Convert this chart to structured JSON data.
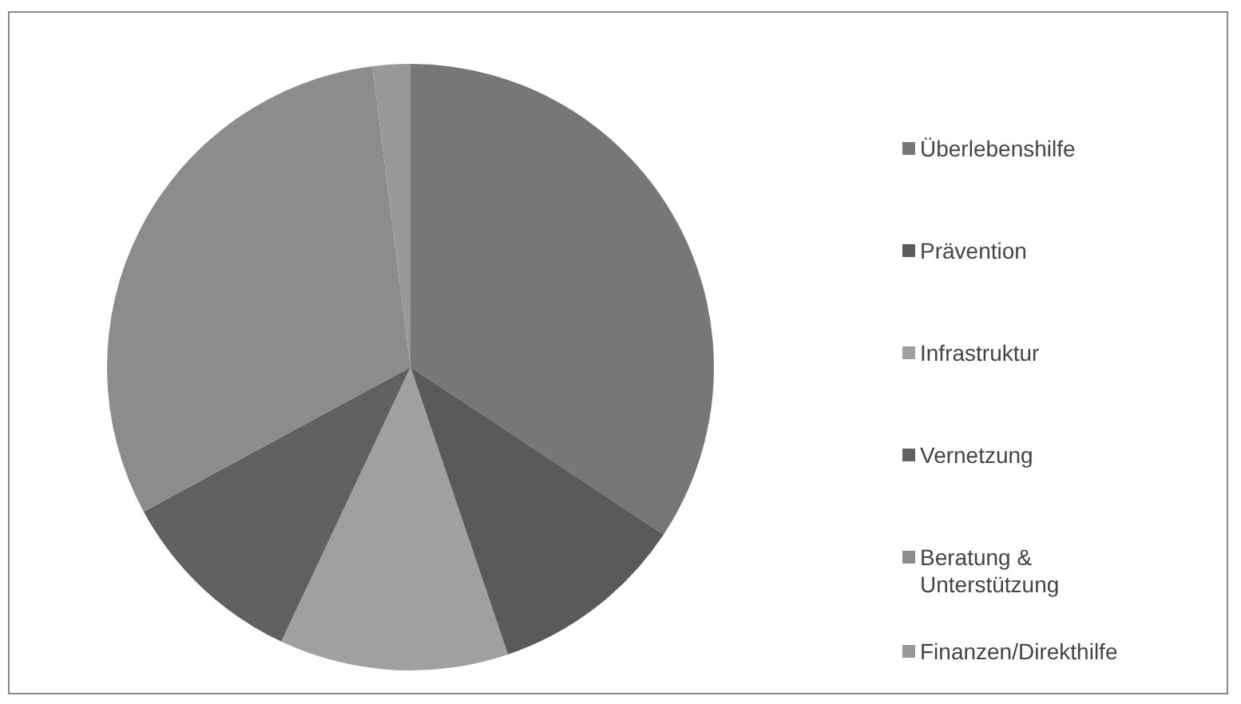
{
  "chart_data": {
    "type": "pie",
    "categories": [
      "Überlebenshilfe",
      "Prävention",
      "Infrastruktur",
      "Vernetzung",
      "Beratung & Unterstützung",
      "Finanzen/Direkthilfe"
    ],
    "values": [
      34.3,
      10.5,
      12.2,
      10.1,
      30.9,
      2.0
    ],
    "colors": [
      "#777777",
      "#5a5a5a",
      "#a0a0a0",
      "#606060",
      "#8c8c8c",
      "#999999"
    ],
    "legend": "right"
  }
}
